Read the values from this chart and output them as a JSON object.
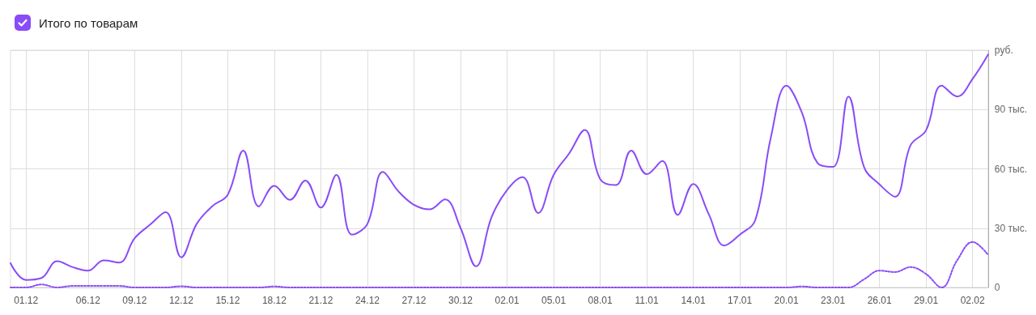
{
  "chart_data": {
    "type": "line",
    "categories": [
      null,
      "01.12",
      null,
      null,
      null,
      "06.12",
      null,
      null,
      "09.12",
      null,
      null,
      "12.12",
      null,
      null,
      "15.12",
      null,
      null,
      "18.12",
      null,
      null,
      "21.12",
      null,
      null,
      "24.12",
      null,
      null,
      "27.12",
      null,
      null,
      "30.12",
      null,
      null,
      "02.01",
      null,
      null,
      "05.01",
      null,
      null,
      "08.01",
      null,
      null,
      "11.01",
      null,
      null,
      "14.01",
      null,
      null,
      "17.01",
      null,
      null,
      "20.01",
      null,
      null,
      "23.01",
      null,
      null,
      "26.01",
      null,
      null,
      "29.01",
      null,
      null,
      "02.02",
      null
    ],
    "series": [
      {
        "name": "Итого по товарам",
        "color": "#8a4cf7",
        "line_style": "solid",
        "values": [
          12.3,
          3.8,
          4.8,
          13.3,
          10.3,
          8.5,
          13.7,
          12.6,
          24.9,
          31.8,
          38.1,
          15.3,
          32.2,
          41.1,
          46.9,
          69.2,
          41,
          51.4,
          44.3,
          54.1,
          40.4,
          56.9,
          26.7,
          32.2,
          58.5,
          48.6,
          41.8,
          39.5,
          44.5,
          30.1,
          10.7,
          35.6,
          49.3,
          55.8,
          37.7,
          56.9,
          67.8,
          79.7,
          54.8,
          51.8,
          69.2,
          57.3,
          64,
          36.7,
          52.3,
          37,
          21.2,
          26.7,
          34.2,
          76,
          102.1,
          88.4,
          63,
          61,
          96.6,
          61,
          52.1,
          45.9,
          71.9,
          79.5,
          102.1,
          96.6,
          105.5,
          117.8
        ]
      },
      {
        "color": "#8a4cf7",
        "line_style": "dotted",
        "values": [
          0,
          0,
          1.5,
          0,
          0.8,
          0.8,
          0.8,
          0.8,
          0,
          0,
          0,
          0.6,
          0,
          0,
          0,
          0,
          0,
          0.5,
          0,
          0,
          0,
          0,
          0,
          0,
          0,
          0,
          0,
          0,
          0,
          0,
          0,
          0,
          0,
          0,
          0,
          0,
          0,
          0,
          0,
          0,
          0,
          0,
          0,
          0,
          0,
          0,
          0,
          0,
          0,
          0,
          0,
          0.5,
          0,
          0,
          0,
          4.1,
          8.5,
          7.8,
          10.3,
          6.8,
          0,
          13.7,
          23,
          16.4
        ]
      }
    ],
    "ylim": [
      0,
      120
    ],
    "yticks": [
      0,
      {
        "value": 30,
        "label": "30 тыс."
      },
      {
        "value": 60,
        "label": "60 тыс."
      },
      {
        "value": 90,
        "label": "90 тыс."
      },
      {
        "value": 120,
        "label": "руб."
      }
    ],
    "grid": true,
    "legend": "top left",
    "marker": "none"
  }
}
